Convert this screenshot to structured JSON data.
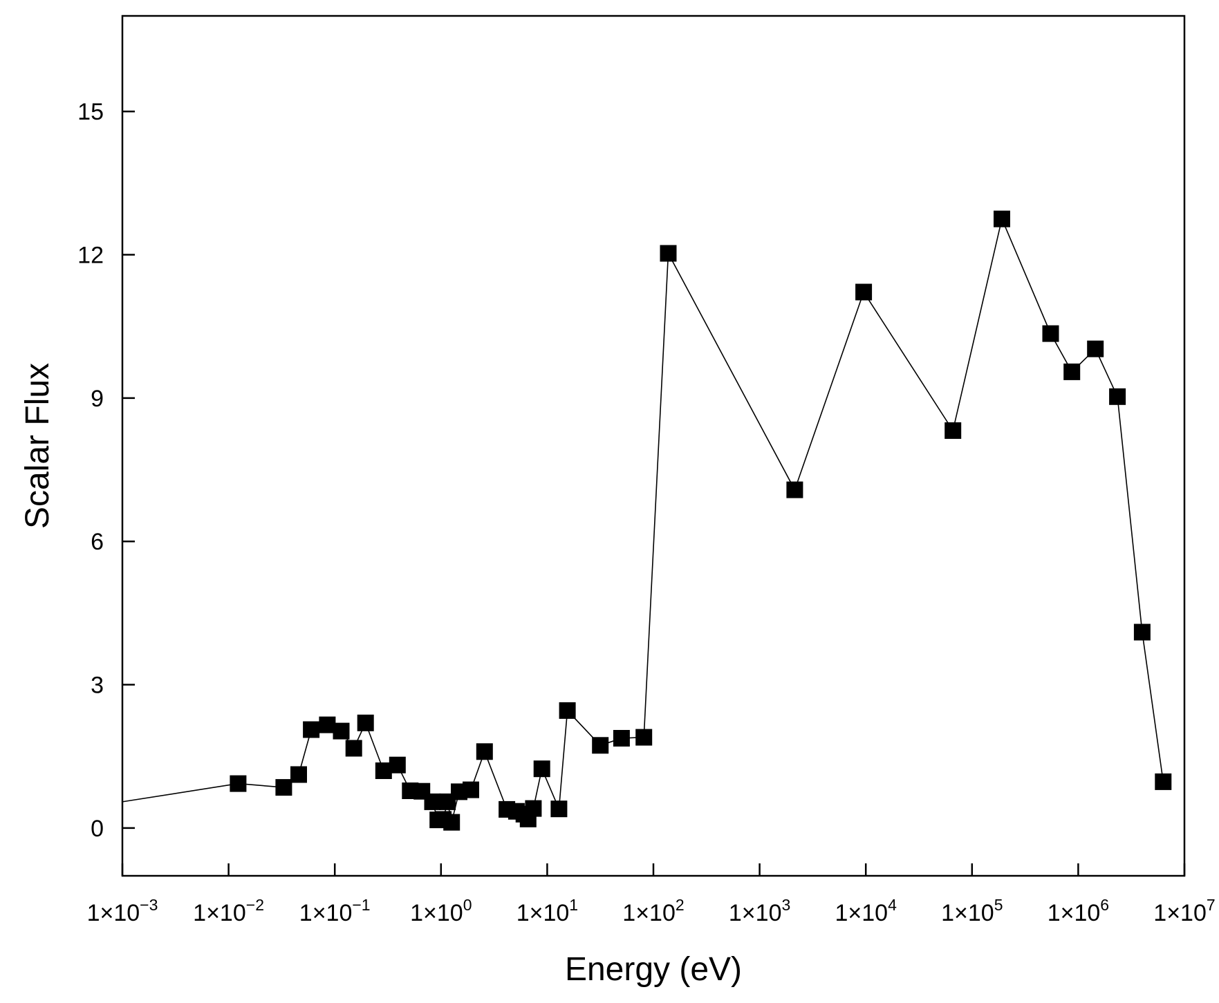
{
  "chart_data": {
    "type": "line",
    "title": "",
    "xlabel": "Energy (eV)",
    "ylabel": "Scalar Flux",
    "xscale": "log",
    "xlim_exponents": [
      -3,
      7
    ],
    "ylim": [
      -1,
      17
    ],
    "grid": false,
    "legend": "none",
    "marker": "filled-square",
    "color": "#000000",
    "xtick_labels": [
      {
        "base": "1×10",
        "exp": "−3"
      },
      {
        "base": "1×10",
        "exp": "−2"
      },
      {
        "base": "1×10",
        "exp": "−1"
      },
      {
        "base": "1×10",
        "exp": "0"
      },
      {
        "base": "1×10",
        "exp": "1"
      },
      {
        "base": "1×10",
        "exp": "2"
      },
      {
        "base": "1×10",
        "exp": "3"
      },
      {
        "base": "1×10",
        "exp": "4"
      },
      {
        "base": "1×10",
        "exp": "5"
      },
      {
        "base": "1×10",
        "exp": "6"
      },
      {
        "base": "1×10",
        "exp": "7"
      }
    ],
    "ytick_values": [
      0,
      3,
      6,
      9,
      12,
      15
    ],
    "ytick_labels": [
      "0",
      "3",
      "6",
      "9",
      "12",
      "15"
    ],
    "line_start": {
      "x": 0.001,
      "y": 0.55
    },
    "series": [
      {
        "name": "Scalar Flux",
        "x": [
          0.0123,
          0.0331,
          0.0457,
          0.06,
          0.0851,
          0.115,
          0.151,
          0.195,
          0.288,
          0.389,
          0.513,
          0.661,
          0.832,
          0.933,
          1.05,
          1.15,
          1.26,
          1.48,
          1.91,
          2.57,
          4.17,
          5.13,
          6.03,
          6.61,
          7.41,
          8.91,
          12.9,
          15.5,
          31.6,
          50.1,
          81.3,
          138,
          2140,
          9550,
          66100,
          191000,
          550000,
          871000,
          1450000,
          2340000,
          4000000,
          6310000
        ],
        "y": [
          0.93,
          0.85,
          1.12,
          2.06,
          2.16,
          2.03,
          1.67,
          2.2,
          1.2,
          1.32,
          0.78,
          0.77,
          0.55,
          0.17,
          0.18,
          0.55,
          0.12,
          0.76,
          0.8,
          1.6,
          0.39,
          0.35,
          0.29,
          0.19,
          0.41,
          1.24,
          0.4,
          2.46,
          1.73,
          1.88,
          1.9,
          12.03,
          7.08,
          11.22,
          8.32,
          12.75,
          10.35,
          9.55,
          10.03,
          9.03,
          4.1,
          0.97
        ]
      }
    ]
  }
}
